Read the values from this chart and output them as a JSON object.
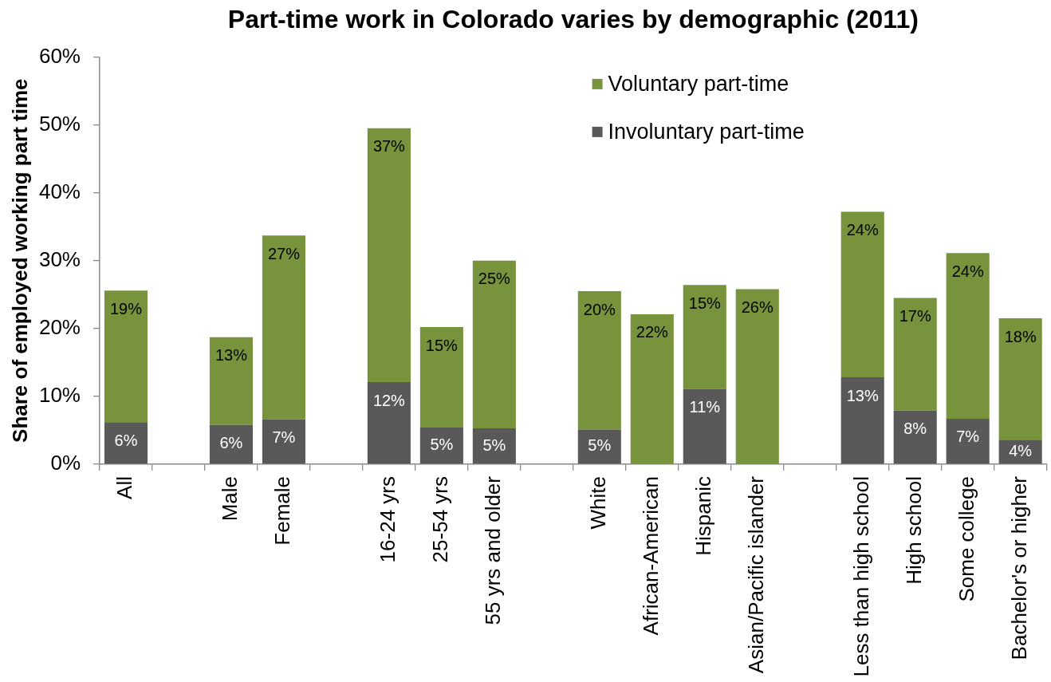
{
  "chart_data": {
    "type": "bar",
    "title": "Part-time work in Colorado varies by demographic (2011)",
    "ylabel": "Share of employed working part time",
    "categories": [
      "All",
      null,
      "Male",
      "Female",
      null,
      "16-24 yrs",
      "25-54 yrs",
      "55 yrs and older",
      null,
      "White",
      "African-American",
      "Hispanic",
      "Asian/Pacific islander",
      null,
      "Less than high school",
      "High school",
      "Some college",
      "Bachelor's or higher"
    ],
    "stacked": true,
    "series": [
      {
        "name": "Involuntary part-time",
        "color": "#595959",
        "values": [
          6.2,
          null,
          5.8,
          6.6,
          null,
          12.1,
          5.4,
          5.3,
          null,
          5.1,
          null,
          11.1,
          null,
          null,
          12.8,
          7.9,
          6.7,
          3.6
        ],
        "value_labels": [
          "6%",
          null,
          "6%",
          "7%",
          null,
          "12%",
          "5%",
          "5%",
          null,
          "5%",
          null,
          "11%",
          null,
          null,
          "13%",
          "8%",
          "7%",
          "4%"
        ]
      },
      {
        "name": "Voluntary part-time",
        "color": "#77933c",
        "values": [
          19.4,
          null,
          12.9,
          27.1,
          null,
          37.4,
          14.8,
          24.7,
          null,
          20.4,
          22.1,
          15.3,
          25.8,
          null,
          24.4,
          16.6,
          24.4,
          17.9
        ],
        "value_labels": [
          "19%",
          null,
          "13%",
          "27%",
          null,
          "37%",
          "15%",
          "25%",
          null,
          "20%",
          "22%",
          "15%",
          "26%",
          null,
          "24%",
          "17%",
          "24%",
          "18%"
        ]
      }
    ],
    "ylim": [
      0,
      60
    ],
    "yticks": [
      {
        "value": 0,
        "label": "0%"
      },
      {
        "value": 10,
        "label": "10%"
      },
      {
        "value": 20,
        "label": "20%"
      },
      {
        "value": 30,
        "label": "30%"
      },
      {
        "value": 40,
        "label": "40%"
      },
      {
        "value": 50,
        "label": "50%"
      },
      {
        "value": 60,
        "label": "60%"
      }
    ],
    "legend": "top right"
  }
}
